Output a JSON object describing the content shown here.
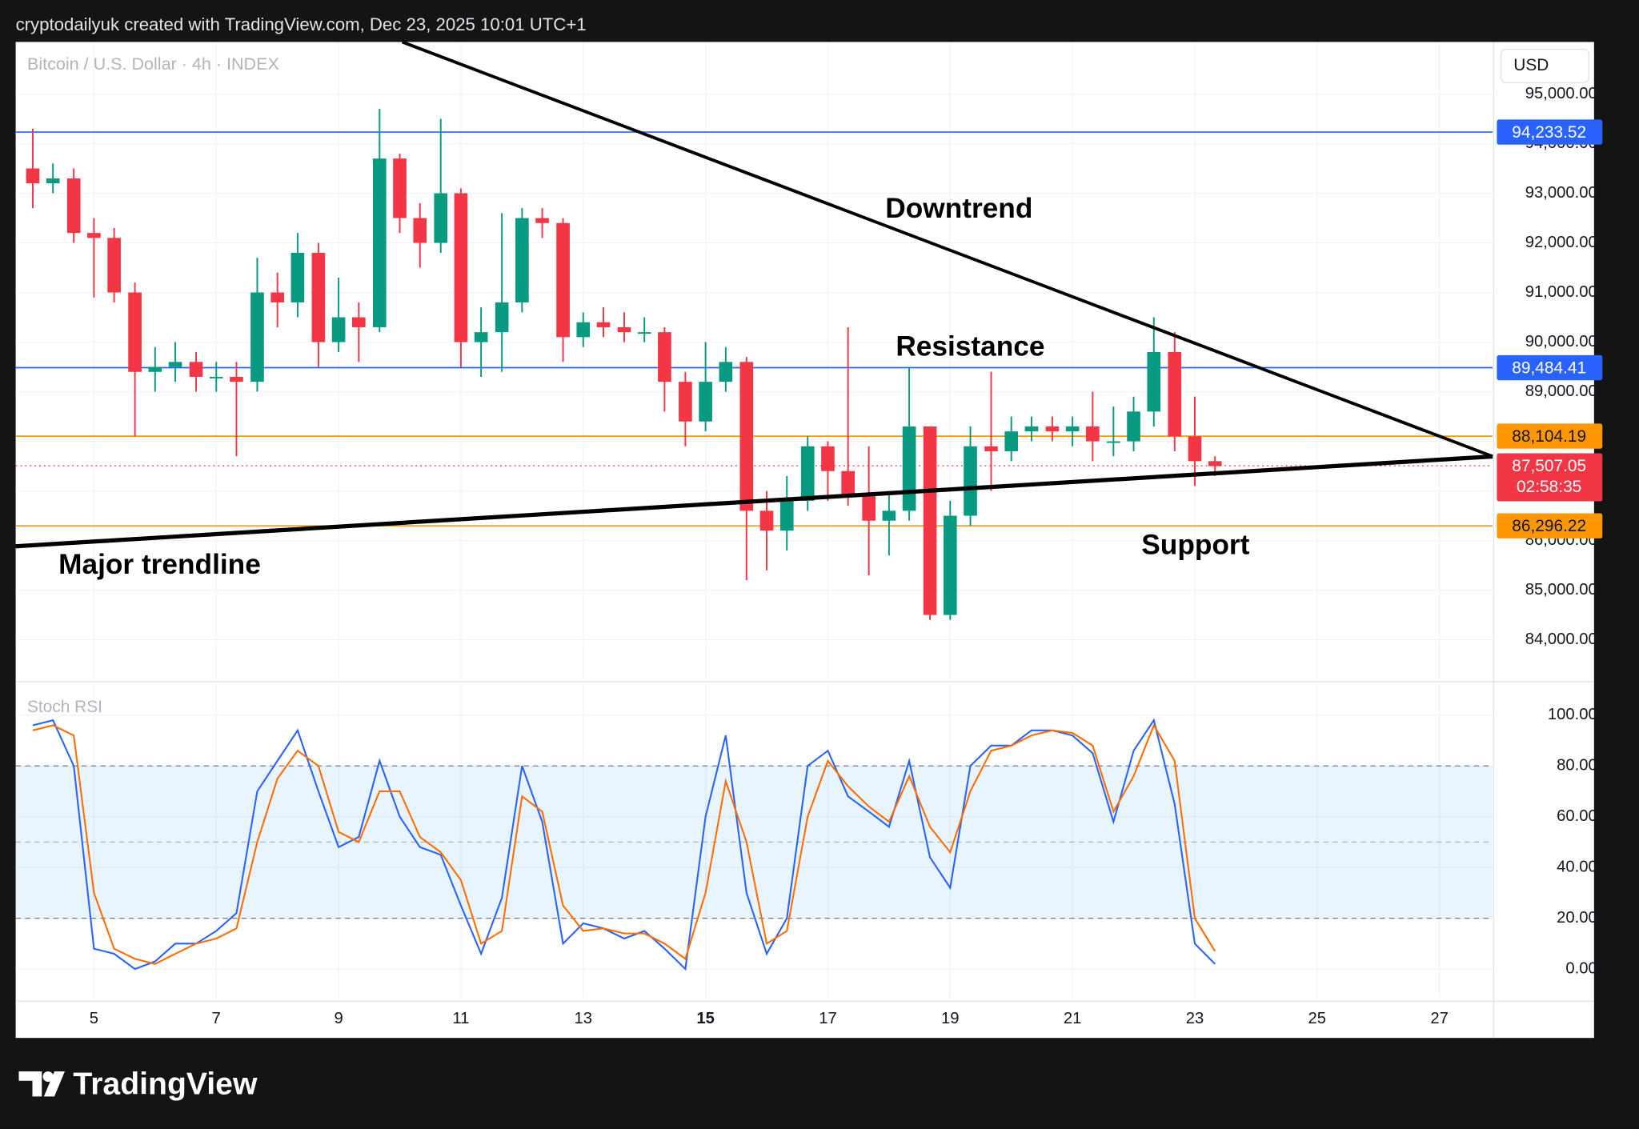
{
  "header": "cryptodailyuk created with TradingView.com, Dec 23, 2025 10:01 UTC+1",
  "footer": "TradingView",
  "chart_data": {
    "type": "candlestick",
    "title": "Bitcoin / U.S. Dollar · 4h · INDEX",
    "currency": "USD",
    "up_color": "#089981",
    "down_color": "#f23645",
    "xlim": [
      3.72,
      27.87
    ],
    "xticks": [
      {
        "value": 5,
        "label": "5"
      },
      {
        "value": 7,
        "label": "7"
      },
      {
        "value": 9,
        "label": "9"
      },
      {
        "value": 11,
        "label": "11"
      },
      {
        "value": 13,
        "label": "13"
      },
      {
        "value": 15,
        "label": "15"
      },
      {
        "value": 17,
        "label": "17"
      },
      {
        "value": 19,
        "label": "19"
      },
      {
        "value": 21,
        "label": "21"
      },
      {
        "value": 23,
        "label": "23"
      },
      {
        "value": 25,
        "label": "25"
      },
      {
        "value": 27,
        "label": "27"
      }
    ],
    "ylim": [
      83200,
      96050
    ],
    "yticks": [
      {
        "value": 84000,
        "label": "84,000.00"
      },
      {
        "value": 85000,
        "label": "85,000.00"
      },
      {
        "value": 86000,
        "label": "86,000.00"
      },
      {
        "value": 87000,
        "label": "87,000.00"
      },
      {
        "value": 88000,
        "label": "88,000.00"
      },
      {
        "value": 89000,
        "label": "89,000.00"
      },
      {
        "value": 90000,
        "label": "90,000.00"
      },
      {
        "value": 91000,
        "label": "91,000.00"
      },
      {
        "value": 92000,
        "label": "92,000.00"
      },
      {
        "value": 93000,
        "label": "93,000.00"
      },
      {
        "value": 94000,
        "label": "94,000.00"
      },
      {
        "value": 95000,
        "label": "95,000.00"
      }
    ],
    "grid": true,
    "x": [
      4.0,
      4.33,
      4.67,
      5.0,
      5.33,
      5.67,
      6.0,
      6.33,
      6.67,
      7.0,
      7.33,
      7.67,
      8.0,
      8.33,
      8.67,
      9.0,
      9.33,
      9.67,
      10.0,
      10.33,
      10.67,
      11.0,
      11.33,
      11.67,
      12.0,
      12.33,
      12.67,
      13.0,
      13.33,
      13.67,
      14.0,
      14.33,
      14.67,
      15.0,
      15.33,
      15.67,
      16.0,
      16.33,
      16.67,
      17.0,
      17.33,
      17.67,
      18.0,
      18.33,
      18.67,
      19.0,
      19.33,
      19.67,
      20.0,
      20.33,
      20.67,
      21.0,
      21.33,
      21.67,
      22.0,
      22.33,
      22.67,
      23.0,
      23.33
    ],
    "open": [
      93500,
      93200,
      93300,
      92200,
      92100,
      91000,
      89400,
      89500,
      89600,
      89300,
      89300,
      89200,
      91000,
      90800,
      91800,
      90000,
      90500,
      90300,
      93700,
      92500,
      92000,
      93000,
      90000,
      90200,
      90800,
      92500,
      92400,
      90100,
      90400,
      90300,
      90200,
      90200,
      89200,
      88400,
      89200,
      89600,
      86600,
      86200,
      86800,
      87900,
      87400,
      86900,
      86400,
      86600,
      88300,
      84500,
      86500,
      87900,
      87800,
      88200,
      88300,
      88200,
      88300,
      88000,
      88000,
      88600,
      89800,
      88100,
      87600
    ],
    "high": [
      94300,
      93600,
      93500,
      92500,
      92300,
      91200,
      89900,
      90000,
      89800,
      89600,
      89600,
      91700,
      91400,
      92200,
      92000,
      91300,
      90800,
      94700,
      93800,
      92800,
      94500,
      93100,
      90700,
      92600,
      92700,
      92700,
      92500,
      90600,
      90700,
      90600,
      90500,
      90300,
      89400,
      90000,
      89900,
      89700,
      87000,
      87300,
      88100,
      88000,
      90300,
      87900,
      87000,
      89500,
      88300,
      86800,
      88300,
      89400,
      88500,
      88500,
      88500,
      88500,
      89000,
      88700,
      88900,
      90500,
      90200,
      88900,
      87700
    ],
    "low": [
      92700,
      93000,
      92000,
      90900,
      90800,
      88100,
      89000,
      89200,
      89000,
      89000,
      87700,
      89000,
      90300,
      90500,
      89500,
      89800,
      89600,
      90200,
      92200,
      91500,
      91800,
      89500,
      89300,
      89400,
      90600,
      92100,
      89600,
      89900,
      90100,
      90000,
      90000,
      88600,
      87900,
      88200,
      89000,
      85200,
      85400,
      85800,
      86600,
      86800,
      86700,
      85300,
      85700,
      86400,
      84400,
      84400,
      86300,
      87000,
      87600,
      88000,
      88000,
      87900,
      87600,
      87700,
      87800,
      88300,
      87800,
      87100,
      87300
    ],
    "close": [
      93200,
      93300,
      92200,
      92100,
      91000,
      89400,
      89500,
      89600,
      89300,
      89300,
      89200,
      91000,
      90800,
      91800,
      90000,
      90500,
      90300,
      93700,
      92500,
      92000,
      93000,
      90000,
      90200,
      90800,
      92500,
      92400,
      90100,
      90400,
      90300,
      90200,
      90200,
      89200,
      88400,
      89200,
      89600,
      86600,
      86200,
      86800,
      87900,
      87400,
      86900,
      86400,
      86600,
      88300,
      84500,
      86500,
      87900,
      87800,
      88200,
      88300,
      88200,
      88300,
      88000,
      88000,
      88600,
      89800,
      88100,
      87600,
      87500
    ],
    "levels": [
      {
        "value": 94233.52,
        "label": "94,233.52",
        "color": "#2962ff",
        "label_color": "#ffffff"
      },
      {
        "value": 89484.41,
        "label": "89,484.41",
        "color": "#2962ff",
        "label_color": "#ffffff"
      },
      {
        "value": 88104.19,
        "label": "88,104.19",
        "color": "#ff9800",
        "label_color": "#131722"
      },
      {
        "value": 86296.22,
        "label": "86,296.22",
        "color": "#ff9800",
        "label_color": "#131722"
      }
    ],
    "last_price": {
      "value": 87507.05,
      "label": "87,507.05",
      "countdown": "02:58:35",
      "color": "#f23645"
    },
    "trendlines": [
      {
        "x": [
          10.04,
          27.87
        ],
        "y": [
          96050,
          87695
        ]
      },
      {
        "x": [
          3.72,
          27.87
        ],
        "y": [
          85884,
          87695
        ]
      }
    ],
    "annotations": [
      "Downtrend",
      "Resistance",
      "Support",
      "Major trendline"
    ],
    "stoch": {
      "title": "Stoch RSI",
      "ylim": [
        -11.5,
        112
      ],
      "yticks": [
        {
          "value": 0,
          "label": "0.00"
        },
        {
          "value": 20,
          "label": "20.00"
        },
        {
          "value": 40,
          "label": "40.00"
        },
        {
          "value": 60,
          "label": "60.00"
        },
        {
          "value": 80,
          "label": "80.00"
        },
        {
          "value": 100,
          "label": "100.00"
        }
      ],
      "band": [
        20,
        80
      ],
      "midline": 50,
      "series": [
        {
          "color": "#2962ff",
          "values": [
            96,
            98,
            80,
            8,
            6,
            0,
            3,
            10,
            10,
            15,
            22,
            70,
            82,
            94,
            70,
            48,
            52,
            82,
            60,
            48,
            45,
            25,
            6,
            28,
            80,
            58,
            10,
            18,
            16,
            12,
            15,
            8,
            0,
            60,
            92,
            30,
            6,
            20,
            80,
            86,
            68,
            62,
            56,
            82,
            44,
            32,
            80,
            88,
            88,
            94,
            94,
            92,
            85,
            58,
            86,
            98,
            65,
            10,
            2
          ]
        },
        {
          "color": "#ff6d00",
          "values": [
            94,
            96,
            92,
            30,
            8,
            4,
            2,
            6,
            10,
            12,
            16,
            50,
            75,
            86,
            80,
            54,
            50,
            70,
            70,
            52,
            46,
            35,
            10,
            15,
            68,
            62,
            25,
            15,
            16,
            14,
            14,
            10,
            4,
            30,
            74,
            50,
            10,
            15,
            60,
            82,
            72,
            64,
            58,
            76,
            56,
            46,
            70,
            86,
            88,
            92,
            94,
            93,
            88,
            62,
            76,
            96,
            82,
            20,
            7
          ]
        }
      ]
    }
  }
}
